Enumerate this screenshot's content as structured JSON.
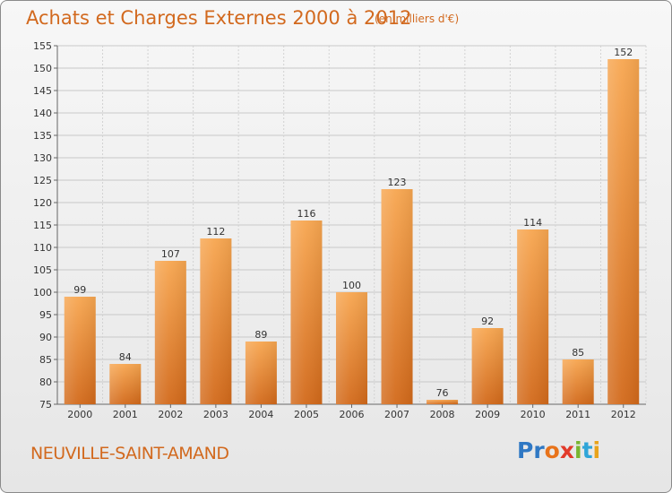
{
  "chart_data": {
    "type": "bar",
    "title": "Achats et Charges Externes 2000 à 2012",
    "subtitle": "(en milliers d'€)",
    "categories": [
      "2000",
      "2001",
      "2002",
      "2003",
      "2004",
      "2005",
      "2006",
      "2007",
      "2008",
      "2009",
      "2010",
      "2011",
      "2012"
    ],
    "values": [
      99,
      84,
      107,
      112,
      89,
      116,
      100,
      123,
      76,
      92,
      114,
      85,
      152
    ],
    "ylim": [
      75,
      155
    ],
    "yticks": [
      75,
      80,
      85,
      90,
      95,
      100,
      105,
      110,
      115,
      120,
      125,
      130,
      135,
      140,
      145,
      150,
      155
    ],
    "grid": true,
    "bar_color": "#f0902f"
  },
  "footer": {
    "commune": "NEUVILLE-SAINT-AMAND",
    "brand_letters": [
      {
        "ch": "P",
        "color": "#2f78c4"
      },
      {
        "ch": "r",
        "color": "#2f78c4"
      },
      {
        "ch": "o",
        "color": "#e8731a"
      },
      {
        "ch": "x",
        "color": "#e23a2a"
      },
      {
        "ch": "i",
        "color": "#79b530"
      },
      {
        "ch": "t",
        "color": "#2fa5d8"
      },
      {
        "ch": "i",
        "color": "#e8a31a"
      }
    ]
  }
}
